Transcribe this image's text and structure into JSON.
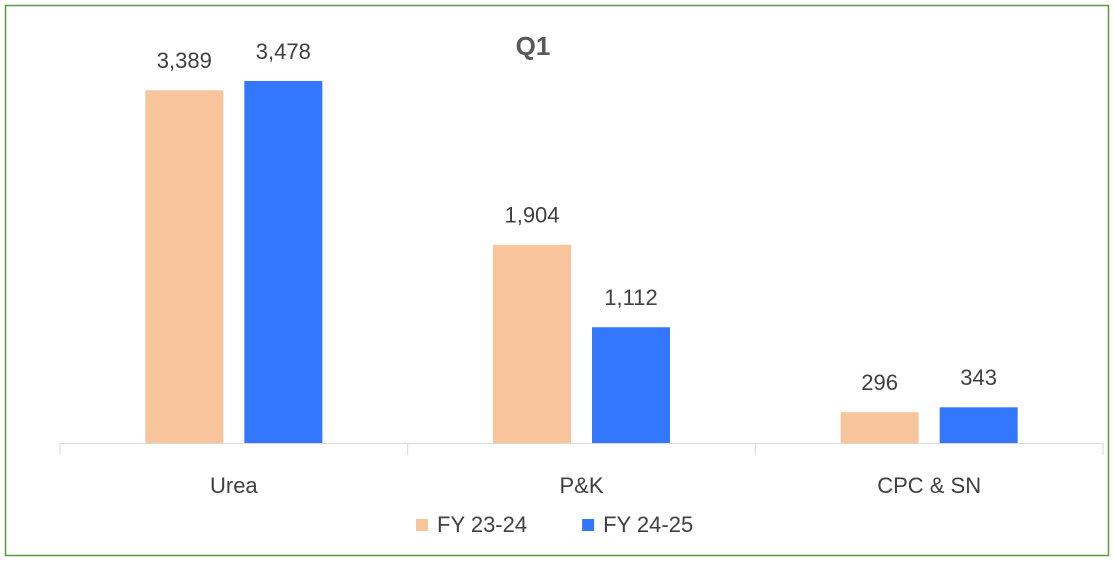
{
  "chart_data": {
    "type": "bar",
    "title": "Q1",
    "categories": [
      "Urea",
      "P&K",
      "CPC & SN"
    ],
    "series": [
      {
        "name": "FY 23-24",
        "color": "#f8c49c",
        "values": [
          3389,
          1904,
          296
        ],
        "value_labels": [
          "3,389",
          "1,904",
          "296"
        ]
      },
      {
        "name": "FY 24-25",
        "color": "#3377ff",
        "values": [
          3478,
          1112,
          343
        ],
        "value_labels": [
          "3,478",
          "1,112",
          "343"
        ]
      }
    ]
  }
}
